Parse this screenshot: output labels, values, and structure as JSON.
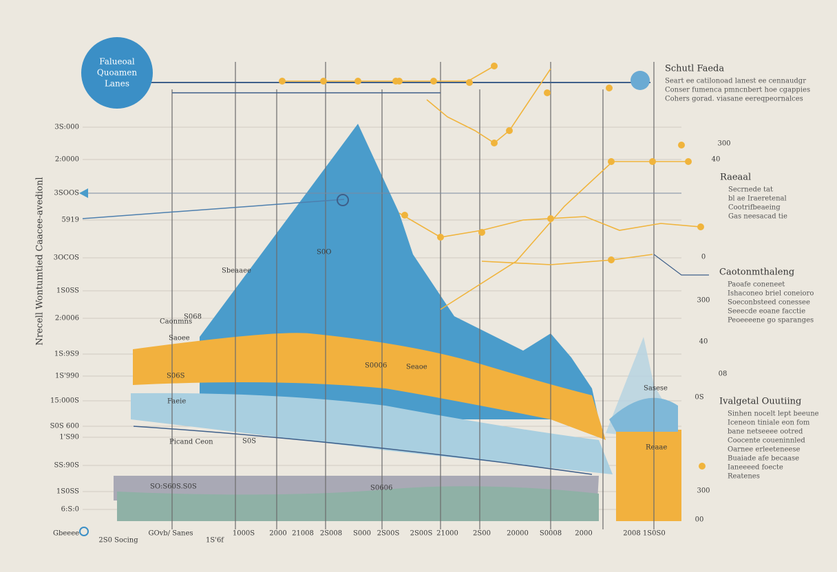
{
  "badge": {
    "lines": [
      "Falueoal",
      "Quoamen",
      "Lanes"
    ]
  },
  "notes": [
    {
      "title": "Schutl Faeda",
      "lines": [
        "Seart ee catilonoad lanest ee cennaudgr",
        "Conser fumenca pmncnbert hoe cgappies",
        "Cohers gorad. viasane eereqpeornalces"
      ]
    },
    {
      "title": "Raeaal",
      "lines": [
        "Secrnede tat",
        "bl ae Iraeretenal",
        "Cootrifbeaeing",
        "Gas neesacad tie"
      ]
    },
    {
      "title": "Caotonmthaleng",
      "lines": [
        "Paoafe coneneet",
        "Ishaconeo briel coneioro",
        "Soeconbsteed conessee",
        "Seeecde eoane facctie",
        "Peoeeeene go sparanges"
      ]
    },
    {
      "title": "Ivalgetal Ouutiing",
      "lines": [
        "Sinhen nocelt lept beeune",
        "Iceneon tiniale eon fom",
        "bane netseeee ootred",
        "Coocente coueninnled",
        "Oarnee erleeteneese",
        "Buaiade afe becaase",
        "Ianeeeed foecte",
        "Reatenes"
      ]
    }
  ],
  "y_axis": {
    "title": "Nrecell Wontumtied Caacee-avedionl",
    "labels": [
      "3S:000",
      "2:0000",
      "3SOOS",
      "5919",
      "3OCOS",
      "1S0SS",
      "2:0006",
      "1S:9S9",
      "1S'990",
      "15:000S",
      "S0S 600",
      "1'S90",
      "SS:90S",
      "1S0SS",
      "6:S:0"
    ]
  },
  "right_labels": [
    "300",
    "40",
    "0",
    "300",
    "40",
    "08",
    "0S",
    "300",
    "00"
  ],
  "x_labels": [
    "Gbeeee",
    "2S0 Socing",
    "GOvb/ Sanes",
    "1S'6f",
    "1000S",
    "2000",
    "21008",
    "2S008",
    "S000",
    "2S00S",
    "2S00S",
    "21000",
    "2S00",
    "20000",
    "S0008",
    "2000",
    "2008 1S0S0"
  ],
  "inner_labels": [
    "Caonmns",
    "S068",
    "Saoee",
    "Faeie",
    "Picand Ceon",
    "S0S",
    "SO:S60S.S0S",
    "S0606",
    "S0006",
    "Seaoe",
    "S06S",
    "Sasese",
    "Reaae",
    "S0O",
    "Sbeaaee"
  ]
}
